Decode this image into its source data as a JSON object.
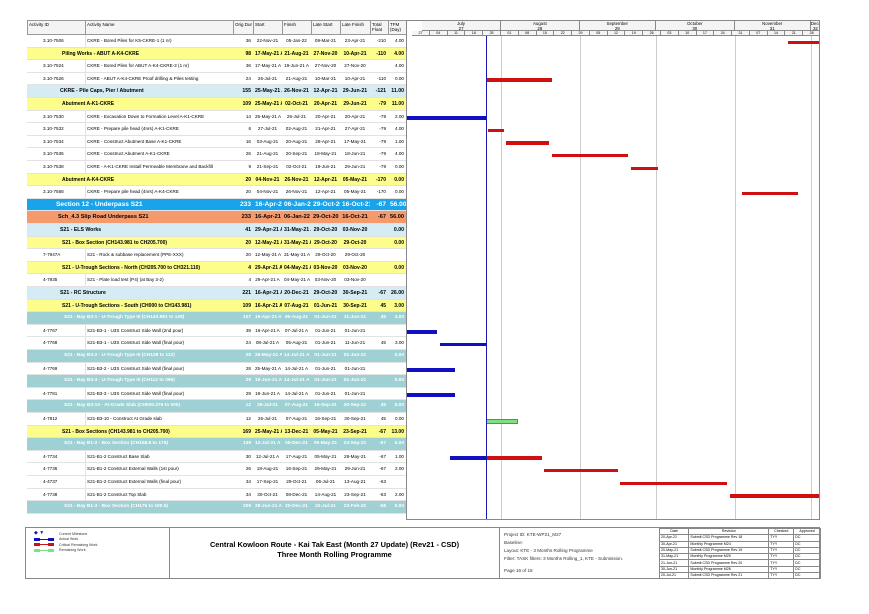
{
  "colors": {
    "actual": "#1010c0",
    "critical": "#d01010",
    "remaining": "#7ee07e",
    "data_date": "#1a1ab0"
  },
  "columns": {
    "id": "Activity ID",
    "name": "Activity Name",
    "dur": "Orig Dur",
    "start": "Start",
    "finish": "Finish",
    "ls": "Late Start",
    "lf": "Late Finish",
    "tf": "Total Float",
    "tfm": "TFM (Day)"
  },
  "timescale": {
    "months": [
      {
        "label": "July",
        "num": "27",
        "from": "2021-07-01",
        "to": "2021-08-01"
      },
      {
        "label": "August",
        "num": "28",
        "from": "2021-08-01",
        "to": "2021-09-01"
      },
      {
        "label": "September",
        "num": "29",
        "from": "2021-09-01",
        "to": "2021-10-01"
      },
      {
        "label": "October",
        "num": "30",
        "from": "2021-10-01",
        "to": "2021-11-01"
      },
      {
        "label": "November",
        "num": "31",
        "from": "2021-11-01",
        "to": "2021-12-01"
      },
      {
        "label": "Decem",
        "num": "32",
        "from": "2021-12-01",
        "to": "2021-12-06"
      }
    ],
    "weeks": [
      "27",
      "04",
      "11",
      "18",
      "25",
      "01",
      "08",
      "15",
      "22",
      "29",
      "05",
      "12",
      "19",
      "26",
      "03",
      "10",
      "17",
      "24",
      "31",
      "07",
      "14",
      "21",
      "28"
    ],
    "range": [
      "2021-06-25",
      "2021-12-05"
    ],
    "data_date": "2021-07-26"
  },
  "rows": [
    {
      "type": "task",
      "id": "3.10-7506",
      "name": "CKRE - Bored Piles for K5-CKRE-1 (1 nr)",
      "dur": "36",
      "start": "22-Nov-21",
      "finish": "05-Jan-22",
      "ls": "09-Mar-21",
      "lf": "23-Apr-21",
      "tf": "-210",
      "tfm": "4.00",
      "bars": [
        {
          "k": "critical",
          "from": "2021-11-22",
          "to": "2022-01-05"
        }
      ]
    },
    {
      "type": "wbs-yellow",
      "name": "Piling Works - ABUT A-K4-CKRE",
      "dur": "98",
      "start": "17-May-21 A",
      "finish": "21-Aug-21",
      "ls": "27-Nov-20",
      "lf": "10-Apr-21",
      "tf": "-110",
      "tfm": "4.00"
    },
    {
      "type": "task",
      "id": "3.10-7524",
      "name": "CKRE - Bored Piles for ABUT A-K4-CKRE-2 (1 nr)",
      "dur": "36",
      "start": "17-May-21 A",
      "finish": "19-Jun-21 A",
      "ls": "27-Nov-20",
      "lf": "27-Nov-20",
      "tf": "",
      "tfm": "4.00"
    },
    {
      "type": "task",
      "id": "3.10-7526",
      "name": "CKRE - ABUT A-K4-CKRE Proof drilling & Piles testing",
      "dur": "24",
      "start": "26-Jul-21",
      "finish": "21-Aug-21",
      "ls": "10-Mar-21",
      "lf": "10-Apr-21",
      "tf": "-110",
      "tfm": "0.00",
      "bars": [
        {
          "k": "critical",
          "from": "2021-07-26",
          "to": "2021-08-21"
        }
      ]
    },
    {
      "type": "wbs-lightblue",
      "name": "CKRE - Pile Caps, Pier / Abutment",
      "dur": "155",
      "start": "25-May-21 A",
      "finish": "26-Nov-21",
      "ls": "12-Apr-21",
      "lf": "29-Jun-21",
      "tf": "-121",
      "tfm": "11.00"
    },
    {
      "type": "wbs-yellow",
      "name": "Abutment A-K1-CKRE",
      "dur": "109",
      "start": "25-May-21 A",
      "finish": "02-Oct-21",
      "ls": "20-Apr-21",
      "lf": "29-Jun-21",
      "tf": "-79",
      "tfm": "11.00"
    },
    {
      "type": "task",
      "id": "3.10-7530",
      "name": "CKRE - Excavation Down to Formation Level A-K1-CKRE",
      "dur": "14",
      "start": "25-May-21 A",
      "finish": "26-Jul-21",
      "ls": "20-Apr-21",
      "lf": "20-Apr-21",
      "tf": "-79",
      "tfm": "2.00",
      "bars": [
        {
          "k": "actual",
          "from": "2021-05-25",
          "to": "2021-07-26"
        }
      ]
    },
    {
      "type": "task",
      "id": "3.10-7532",
      "name": "CKRE - Prepare pile head (4nrs) A-K1-CKRE",
      "dur": "6",
      "start": "27-Jul-21",
      "finish": "02-Aug-21",
      "ls": "21-Apr-21",
      "lf": "27-Apr-21",
      "tf": "-79",
      "tfm": "4.00",
      "bars": [
        {
          "k": "critical",
          "from": "2021-07-27",
          "to": "2021-08-02"
        }
      ]
    },
    {
      "type": "task",
      "id": "3.10-7534",
      "name": "CKRE - Construct Abutment Base A-K1-CKRE",
      "dur": "16",
      "start": "03-Aug-21",
      "finish": "20-Aug-21",
      "ls": "28-Apr-21",
      "lf": "17-May-21",
      "tf": "-79",
      "tfm": "1.00",
      "bars": [
        {
          "k": "critical",
          "from": "2021-08-03",
          "to": "2021-08-20"
        }
      ]
    },
    {
      "type": "task",
      "id": "3.10-7536",
      "name": "CKRE - Construct Abutment A-K1-CKRE",
      "dur": "26",
      "start": "21-Aug-21",
      "finish": "20-Sep-21",
      "ls": "18-May-21",
      "lf": "18-Jun-21",
      "tf": "-79",
      "tfm": "4.00",
      "bars": [
        {
          "k": "critical",
          "from": "2021-08-21",
          "to": "2021-09-20"
        }
      ]
    },
    {
      "type": "task",
      "id": "3.10-7538",
      "name": "CKRE - A-K1-CKRE Install Permeable Membrane and Backfill",
      "dur": "9",
      "start": "21-Sep-21",
      "finish": "02-Oct-21",
      "ls": "19-Jun-21",
      "lf": "29-Jun-21",
      "tf": "-79",
      "tfm": "0.00",
      "bars": [
        {
          "k": "critical",
          "from": "2021-09-21",
          "to": "2021-10-02"
        }
      ]
    },
    {
      "type": "wbs-yellow",
      "name": "Abutment A-K4-CKRE",
      "dur": "20",
      "start": "04-Nov-21",
      "finish": "26-Nov-21",
      "ls": "12-Apr-21",
      "lf": "05-May-21",
      "tf": "-170",
      "tfm": "0.00"
    },
    {
      "type": "task",
      "id": "3.10-7568",
      "name": "CKRE - Prepare pile head (4nrs) A-K4-CKRE",
      "dur": "20",
      "start": "04-Nov-21",
      "finish": "26-Nov-21",
      "ls": "12-Apr-21",
      "lf": "05-May-21",
      "tf": "-170",
      "tfm": "0.00",
      "bars": [
        {
          "k": "critical",
          "from": "2021-11-04",
          "to": "2021-11-26"
        }
      ]
    },
    {
      "type": "wbs-blue",
      "name": "Section 12 - Underpass S21",
      "dur": "233",
      "start": "16-Apr-21 A",
      "finish": "06-Jan-22",
      "ls": "29-Oct-20",
      "lf": "16-Oct-21",
      "tf": "-67",
      "tfm": "56.00"
    },
    {
      "type": "wbs-orange",
      "name": "Sch_4.3 Slip Road Underpass S21",
      "dur": "233",
      "start": "16-Apr-21 A",
      "finish": "06-Jan-22",
      "ls": "29-Oct-20",
      "lf": "16-Oct-21",
      "tf": "-67",
      "tfm": "56.00"
    },
    {
      "type": "wbs-lightblue",
      "name": "S21 - ELS Works",
      "dur": "41",
      "start": "29-Apr-21 A",
      "finish": "31-May-21 A",
      "ls": "29-Oct-20",
      "lf": "03-Nov-20",
      "tf": "",
      "tfm": "0.00"
    },
    {
      "type": "wbs-yellow",
      "name": "S21 - Box Section (CH143.981 to CH205.700)",
      "dur": "20",
      "start": "12-May-21 A",
      "finish": "31-May-21 A",
      "ls": "29-Oct-20",
      "lf": "29-Oct-20",
      "tf": "",
      "tfm": "0.00"
    },
    {
      "type": "task",
      "id": "7-7947A",
      "name": "S21 - Rock & subbase replacement (PPE-XXX)",
      "dur": "20",
      "start": "12-May-21 A",
      "finish": "31-May-21 A",
      "ls": "29-Oct-20",
      "lf": "29-Oct-20",
      "tf": "",
      "tfm": ""
    },
    {
      "type": "wbs-yellow",
      "name": "S21 - U-Trough Sections - North (CH205.700 to CH321.110)",
      "dur": "4",
      "start": "29-Apr-21 A",
      "finish": "04-May-21 A",
      "ls": "03-Nov-20",
      "lf": "03-Nov-20",
      "tf": "",
      "tfm": "0.00"
    },
    {
      "type": "task",
      "id": "4-7935",
      "name": "S21 - Plate load test (P4) (at Bay 3-2)",
      "dur": "4",
      "start": "29-Apr-21 A",
      "finish": "04-May-21 A",
      "ls": "03-Nov-20",
      "lf": "03-Nov-20",
      "tf": "",
      "tfm": ""
    },
    {
      "type": "wbs-lightblue",
      "name": "S21 - RC Structure",
      "dur": "221",
      "start": "16-Apr-21 A",
      "finish": "20-Dec-21",
      "ls": "29-Oct-20",
      "lf": "30-Sep-21",
      "tf": "-67",
      "tfm": "26.00"
    },
    {
      "type": "wbs-yellow",
      "name": "S21 - U-Trough Sections - South (CH000 to CH143.981)",
      "dur": "109",
      "start": "16-Apr-21 A",
      "finish": "07-Aug-21",
      "ls": "01-Jun-21",
      "lf": "30-Sep-21",
      "tf": "45",
      "tfm": "3.00"
    },
    {
      "type": "wbs-teal",
      "name": "S21 - Bay B3-1 - U-Trough Type III (CH143.981 to 128)",
      "dur": "107",
      "start": "16-Apr-21 A",
      "finish": "05-Aug-21",
      "ls": "01-Jun-21",
      "lf": "11-Jun-21",
      "tf": "45",
      "tfm": "3.00"
    },
    {
      "type": "task",
      "id": "4-7767",
      "name": "S21-B3-1 - U3S Construct Side Wall (2nd pour)",
      "dur": "39",
      "start": "16-Apr-21 A",
      "finish": "07-Jul-21 A",
      "ls": "01-Jun-21",
      "lf": "01-Jun-21",
      "tf": "",
      "tfm": "",
      "bars": [
        {
          "k": "actual",
          "from": "2021-04-16",
          "to": "2021-07-07"
        }
      ]
    },
    {
      "type": "task",
      "id": "4-7768",
      "name": "S21-B3-1 - U3S Construct Side Wall (final pour)",
      "dur": "24",
      "start": "08-Jul-21 A",
      "finish": "05-Aug-21",
      "ls": "01-Jun-21",
      "lf": "11-Jun-21",
      "tf": "45",
      "tfm": "3.00",
      "bars": [
        {
          "k": "actual",
          "from": "2021-07-08",
          "to": "2021-07-26"
        }
      ]
    },
    {
      "type": "wbs-teal",
      "name": "S21 - Bay B3-2 - U-Trough Type III (CH128 to 112)",
      "dur": "28",
      "start": "25-May-21 A",
      "finish": "14-Jul-21 A",
      "ls": "01-Jun-21",
      "lf": "01-Jun-21",
      "tf": "",
      "tfm": "0.00"
    },
    {
      "type": "task",
      "id": "4-7769",
      "name": "S21-B3-2 - U3S Construct Side Wall (final pour)",
      "dur": "28",
      "start": "25-May-21 A",
      "finish": "14-Jul-21 A",
      "ls": "01-Jun-21",
      "lf": "01-Jun-21",
      "tf": "",
      "tfm": "",
      "bars": [
        {
          "k": "actual",
          "from": "2021-05-25",
          "to": "2021-07-14"
        }
      ]
    },
    {
      "type": "wbs-teal",
      "name": "S21 - Bay B3-3 - U-Trough Type III (CH112 to 096)",
      "dur": "29",
      "start": "19-Jun-21 A",
      "finish": "14-Jul-21 A",
      "ls": "01-Jun-21",
      "lf": "01-Jun-21",
      "tf": "",
      "tfm": "0.00"
    },
    {
      "type": "task",
      "id": "4-7781",
      "name": "S21-B3-3 - U3S Construct Side Wall (final pour)",
      "dur": "29",
      "start": "19-Jun-21 A",
      "finish": "14-Jul-21 A",
      "ls": "01-Jun-21",
      "lf": "01-Jun-21",
      "tf": "",
      "tfm": "",
      "bars": [
        {
          "k": "actual",
          "from": "2021-06-19",
          "to": "2021-07-14"
        }
      ]
    },
    {
      "type": "wbs-teal",
      "name": "S21 - Bay B3-10 - At-Grade Slab (CH000.376 to 000)",
      "dur": "12",
      "start": "26-Jul-21",
      "finish": "07-Aug-21",
      "ls": "16-Sep-21",
      "lf": "30-Sep-21",
      "tf": "45",
      "tfm": "0.00"
    },
    {
      "type": "task",
      "id": "4-7812",
      "name": "S21-B3-10 - Construct At Grade slab",
      "dur": "12",
      "start": "26-Jul-21",
      "finish": "07-Aug-21",
      "ls": "16-Sep-21",
      "lf": "30-Sep-21",
      "tf": "45",
      "tfm": "0.00",
      "bars": [
        {
          "k": "remaining",
          "from": "2021-07-26",
          "to": "2021-08-07"
        }
      ]
    },
    {
      "type": "wbs-yellow",
      "name": "S21 - Box Sections (CH143.981 to CH205.700)",
      "dur": "169",
      "start": "25-May-21 A",
      "finish": "13-Dec-21",
      "ls": "05-May-21",
      "lf": "23-Sep-21",
      "tf": "-67",
      "tfm": "13.00"
    },
    {
      "type": "wbs-teal",
      "name": "S21 - Bay B1-2 - Box Section (CH158.8 to 175)",
      "dur": "139",
      "start": "12-Jul-21 A",
      "finish": "08-Dec-21",
      "ls": "05-May-21",
      "lf": "23-Sep-21",
      "tf": "-67",
      "tfm": "5.00"
    },
    {
      "type": "task",
      "id": "4-7734",
      "name": "S21-B1-2 Construct Base Slab",
      "dur": "30",
      "start": "12-Jul-21 A",
      "finish": "17-Aug-21",
      "ls": "05-May-21",
      "lf": "28-May-21",
      "tf": "-67",
      "tfm": "1.00",
      "bars": [
        {
          "k": "actual",
          "from": "2021-07-12",
          "to": "2021-07-26"
        },
        {
          "k": "critical",
          "from": "2021-07-26",
          "to": "2021-08-17"
        }
      ]
    },
    {
      "type": "task",
      "id": "4-7736",
      "name": "S21-B1-2 Construct External Walls (1st pour)",
      "dur": "26",
      "start": "18-Aug-21",
      "finish": "16-Sep-21",
      "ls": "29-May-21",
      "lf": "29-Jun-21",
      "tf": "-67",
      "tfm": "2.00",
      "bars": [
        {
          "k": "critical",
          "from": "2021-08-18",
          "to": "2021-09-16"
        }
      ]
    },
    {
      "type": "task",
      "id": "4-4737",
      "name": "S21-B1-2 Construct External Walls (final pour)",
      "dur": "34",
      "start": "17-Sep-21",
      "finish": "29-Oct-21",
      "ls": "06-Jul-21",
      "lf": "13-Aug-21",
      "tf": "-63",
      "tfm": "",
      "bars": [
        {
          "k": "critical",
          "from": "2021-09-17",
          "to": "2021-10-29"
        }
      ]
    },
    {
      "type": "task",
      "id": "4-7738",
      "name": "S21-B1-2 Construct Top Slab",
      "dur": "34",
      "start": "30-Oct-21",
      "finish": "08-Dec-21",
      "ls": "14-Aug-21",
      "lf": "23-Sep-21",
      "tf": "-63",
      "tfm": "2.00",
      "bars": [
        {
          "k": "critical",
          "from": "2021-10-30",
          "to": "2021-12-08"
        }
      ]
    },
    {
      "type": "wbs-teal",
      "name": "S21 - Bay B1-3 - Box Section (CH175 to 190.5)",
      "dur": "209",
      "start": "28-Jun-21 A",
      "finish": "20-Dec-21",
      "ls": "22-Jul-21",
      "lf": "23-Feb-22",
      "tf": "-58",
      "tfm": "5.00"
    }
  ],
  "legend": [
    {
      "icon": "milestone-icon",
      "label": "Current Milestone"
    },
    {
      "icon": "actual-bar-icon",
      "label": "Actual Work"
    },
    {
      "icon": "critical-bar-icon",
      "label": "Critical Remaining Work"
    },
    {
      "icon": "remaining-bar-icon",
      "label": "Remaining Work"
    }
  ],
  "title": {
    "line1": "Central Kowloon Route - Kai Tak East (Month 27 Update) (Rev21 - CSD)",
    "line2": "Three Month Rolling Programme"
  },
  "info": {
    "project": "Project ID: KTE-WP21_M27",
    "baseline": "Baseline:",
    "layout": "Layout: KTE - 3 Months Rolling Programme",
    "filter": "Filter: TASK filters: 3 Months Rolling_1, KTE - Submission.",
    "page": "Page 16 of 18"
  },
  "revisions": {
    "headers": [
      "Date",
      "Revision",
      "Checked",
      "Approved"
    ],
    "rows": [
      [
        "20-Apr-21",
        "Submit CSD Programme Rev 18",
        "TYY",
        "DC"
      ],
      [
        "30-Apr-21",
        "Monthly Programme M24",
        "TYY",
        "DC"
      ],
      [
        "20-May-21",
        "Submit CSD Programme Rev 19",
        "TYY",
        "DC"
      ],
      [
        "31-May-21",
        "Monthly Programme M25",
        "TYY",
        "DC"
      ],
      [
        "21-Jun-21",
        "Submit CSD Programme Rev 20",
        "TYY",
        "DC"
      ],
      [
        "30-Jun-21",
        "Monthly Programme M26",
        "TYY",
        "DC"
      ],
      [
        "20-Jul-21",
        "Submit CSD Programme Rev 21",
        "TYY",
        "DC"
      ]
    ]
  }
}
